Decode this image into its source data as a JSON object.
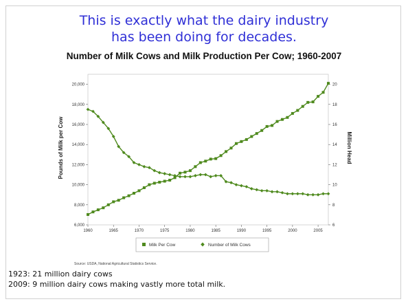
{
  "slide": {
    "heading_line1": "This is exactly what the dairy industry",
    "heading_line2": "has been doing for decades.",
    "note_1923": "1923: 21 million dairy cows",
    "note_2009": "2009: 9 million dairy cows making vastly more total milk.",
    "accent_color": "#2f2fd6"
  },
  "chart_data": {
    "type": "line",
    "title": "Number of Milk Cows and Milk Production Per Cow; 1960-2007",
    "ylabel_left": "Pounds of Milk per Cow",
    "ylabel_right": "Million Head",
    "source": "Source: USDA, National Agricultural Statistics Service.",
    "x_range": [
      1960,
      2007
    ],
    "x_ticks": [
      "1960",
      "1965",
      "1970",
      "1975",
      "1980",
      "1985",
      "1990",
      "1995",
      "2000",
      "2005"
    ],
    "y_left_range": [
      6000,
      21000
    ],
    "y_left_ticks": [
      "6,000",
      "8,000",
      "10,000",
      "12,000",
      "14,000",
      "16,000",
      "18,000",
      "20,000"
    ],
    "y_right_range": [
      6,
      21
    ],
    "y_right_ticks": [
      "6",
      "8",
      "10",
      "12",
      "14",
      "16",
      "18",
      "20"
    ],
    "series_color": "#4f8a1e",
    "series": [
      {
        "name": "Milk Per Cow",
        "axis": "left",
        "marker": "square",
        "x": [
          1960,
          1961,
          1962,
          1963,
          1964,
          1965,
          1966,
          1967,
          1968,
          1969,
          1970,
          1971,
          1972,
          1973,
          1974,
          1975,
          1976,
          1977,
          1978,
          1979,
          1980,
          1981,
          1982,
          1983,
          1984,
          1985,
          1986,
          1987,
          1988,
          1989,
          1990,
          1991,
          1992,
          1993,
          1994,
          1995,
          1996,
          1997,
          1998,
          1999,
          2000,
          2001,
          2002,
          2003,
          2004,
          2005,
          2006,
          2007
        ],
        "y": [
          7030,
          7290,
          7500,
          7700,
          8000,
          8300,
          8450,
          8700,
          8900,
          9150,
          9400,
          9700,
          10000,
          10150,
          10250,
          10350,
          10450,
          10700,
          11150,
          11250,
          11400,
          11800,
          12200,
          12350,
          12550,
          12600,
          12900,
          13300,
          13650,
          14100,
          14300,
          14500,
          14800,
          15100,
          15400,
          15800,
          15900,
          16300,
          16500,
          16700,
          17100,
          17400,
          17800,
          18200,
          18250,
          18800,
          19200,
          20100
        ]
      },
      {
        "name": "Number of Milk Cows",
        "axis": "right",
        "marker": "diamond",
        "x": [
          1960,
          1961,
          1962,
          1963,
          1964,
          1965,
          1966,
          1967,
          1968,
          1969,
          1970,
          1971,
          1972,
          1973,
          1974,
          1975,
          1976,
          1977,
          1978,
          1979,
          1980,
          1981,
          1982,
          1983,
          1984,
          1985,
          1986,
          1987,
          1988,
          1989,
          1990,
          1991,
          1992,
          1993,
          1994,
          1995,
          1996,
          1997,
          1998,
          1999,
          2000,
          2001,
          2002,
          2003,
          2004,
          2005,
          2006,
          2007
        ],
        "y": [
          17.5,
          17.3,
          16.8,
          16.2,
          15.6,
          14.8,
          13.8,
          13.2,
          12.8,
          12.2,
          12.0,
          11.8,
          11.7,
          11.4,
          11.2,
          11.1,
          11.0,
          10.9,
          10.8,
          10.8,
          10.8,
          10.9,
          11.0,
          11.0,
          10.8,
          10.9,
          10.9,
          10.3,
          10.2,
          10.0,
          9.9,
          9.8,
          9.6,
          9.5,
          9.4,
          9.4,
          9.3,
          9.3,
          9.2,
          9.1,
          9.1,
          9.1,
          9.1,
          9.0,
          9.0,
          9.0,
          9.1,
          9.1
        ]
      }
    ],
    "legend": [
      "Milk Per Cow",
      "Number of Milk Cows"
    ],
    "legend_position": "bottom",
    "grid": false
  }
}
